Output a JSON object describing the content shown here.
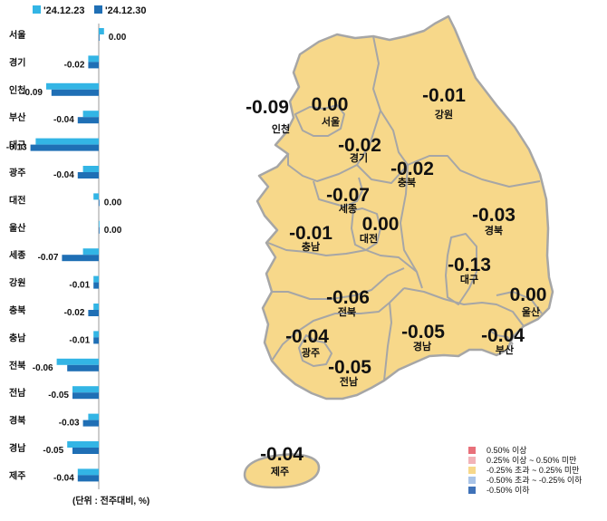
{
  "chart_data": [
    {
      "type": "bar",
      "orientation": "horizontal",
      "categories": [
        "서울",
        "경기",
        "인천",
        "부산",
        "대구",
        "광주",
        "대전",
        "울산",
        "세종",
        "강원",
        "충북",
        "충남",
        "전북",
        "전남",
        "경북",
        "경남",
        "제주"
      ],
      "series": [
        {
          "name": "'24.12.23",
          "color": "#33b5e5",
          "values": [
            0.01,
            -0.02,
            -0.1,
            -0.03,
            -0.12,
            -0.03,
            -0.01,
            0.0,
            -0.03,
            -0.01,
            -0.01,
            -0.01,
            -0.08,
            -0.05,
            -0.02,
            -0.06,
            -0.04
          ]
        },
        {
          "name": "'24.12.30",
          "color": "#1f6fb5",
          "values": [
            0.0,
            -0.02,
            -0.09,
            -0.04,
            -0.13,
            -0.04,
            0.0,
            0.0,
            -0.07,
            -0.01,
            -0.02,
            -0.01,
            -0.06,
            -0.05,
            -0.03,
            -0.05,
            -0.04
          ]
        }
      ],
      "data_labels": [
        "0.00",
        "-0.02",
        "-0.09",
        "-0.04",
        "-0.13",
        "-0.04",
        "0.00",
        "0.00",
        "-0.07",
        "-0.01",
        "-0.02",
        "-0.01",
        "-0.06",
        "-0.05",
        "-0.03",
        "-0.05",
        "-0.04"
      ],
      "xlim": [
        -0.16,
        0.02
      ],
      "unit_note": "(단위 : 전주대비, %)",
      "legend_position": "top"
    },
    {
      "type": "map",
      "regions": [
        {
          "name": "인천",
          "value": "-0.09"
        },
        {
          "name": "서울",
          "value": "0.00"
        },
        {
          "name": "강원",
          "value": "-0.01"
        },
        {
          "name": "경기",
          "value": "-0.02"
        },
        {
          "name": "충북",
          "value": "-0.02"
        },
        {
          "name": "세종",
          "value": "-0.07"
        },
        {
          "name": "경북",
          "value": "-0.03"
        },
        {
          "name": "충남",
          "value": "-0.01"
        },
        {
          "name": "대전",
          "value": "0.00"
        },
        {
          "name": "대구",
          "value": "-0.13"
        },
        {
          "name": "울산",
          "value": "0.00"
        },
        {
          "name": "전북",
          "value": "-0.06"
        },
        {
          "name": "광주",
          "value": "-0.04"
        },
        {
          "name": "경남",
          "value": "-0.05"
        },
        {
          "name": "부산",
          "value": "-0.04"
        },
        {
          "name": "전남",
          "value": "-0.05"
        },
        {
          "name": "제주",
          "value": "-0.04"
        }
      ],
      "legend": [
        {
          "label": "0.50% 이상",
          "color": "#e8707a"
        },
        {
          "label": "0.25% 이상 ~ 0.50% 미만",
          "color": "#f2b3b8"
        },
        {
          "label": "-0.25% 초과 ~ 0.25% 미만",
          "color": "#f7d88a"
        },
        {
          "label": "-0.50% 초과 ~ -0.25% 이하",
          "color": "#a9c4e8"
        },
        {
          "label": "-0.50% 이하",
          "color": "#3f72b8"
        }
      ],
      "legend_position": "bottom-right",
      "fill_color": "#f7d88a",
      "border_color": "#a6a6a6"
    }
  ]
}
